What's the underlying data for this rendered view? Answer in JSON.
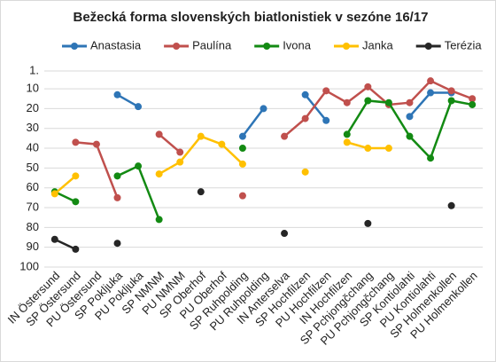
{
  "chart_data": {
    "type": "line",
    "title": "Bežecká forma slovenských biatlonistiek v sezóne 16/17",
    "categories": [
      "IN Östersund",
      "SP Östersund",
      "PU Östersund",
      "SP Pokljuka",
      "PU Pokljuka",
      "SP NMNM",
      "PU NMNM",
      "SP Oberhof",
      "PU Oberhof",
      "SP Ruhpolding",
      "PU Ruhpolding",
      "IN Anterselva",
      "SP Hochfilzen",
      "PU Hochfilzen",
      "IN Hochfilzen",
      "SP Pchjongčchang",
      "PU Pchjongčchang",
      "SP Kontiolahti",
      "PU Kontiolahti",
      "SP Holmenkollen",
      "PU Holmenkollen"
    ],
    "series": [
      {
        "name": "Anastasia",
        "color": "#2e75b6",
        "values": [
          null,
          null,
          null,
          13,
          19,
          null,
          null,
          null,
          null,
          34,
          20,
          null,
          13,
          26,
          null,
          null,
          null,
          24,
          12,
          12,
          null
        ]
      },
      {
        "name": "Paulína",
        "color": "#c0504d",
        "values": [
          null,
          37,
          38,
          65,
          null,
          33,
          42,
          null,
          null,
          64,
          null,
          34,
          25,
          11,
          17,
          9,
          18,
          17,
          6,
          11,
          15
        ]
      },
      {
        "name": "Ivona",
        "color": "#138a13",
        "values": [
          62,
          67,
          null,
          54,
          49,
          76,
          null,
          null,
          null,
          40,
          null,
          null,
          null,
          null,
          33,
          16,
          17,
          34,
          45,
          16,
          18
        ]
      },
      {
        "name": "Janka",
        "color": "#ffc000",
        "values": [
          63,
          54,
          null,
          null,
          null,
          53,
          47,
          34,
          38,
          48,
          null,
          null,
          52,
          null,
          37,
          40,
          40,
          null,
          null,
          null,
          null
        ]
      },
      {
        "name": "Terézia",
        "color": "#262626",
        "values": [
          86,
          91,
          null,
          88,
          null,
          null,
          null,
          62,
          null,
          null,
          null,
          83,
          null,
          null,
          null,
          78,
          null,
          null,
          null,
          69,
          null
        ]
      }
    ],
    "ylim": [
      100,
      1
    ],
    "yticks": [
      {
        "value": 1,
        "label": "1."
      },
      10,
      20,
      30,
      40,
      50,
      60,
      70,
      80,
      90,
      100
    ],
    "grid": true
  }
}
